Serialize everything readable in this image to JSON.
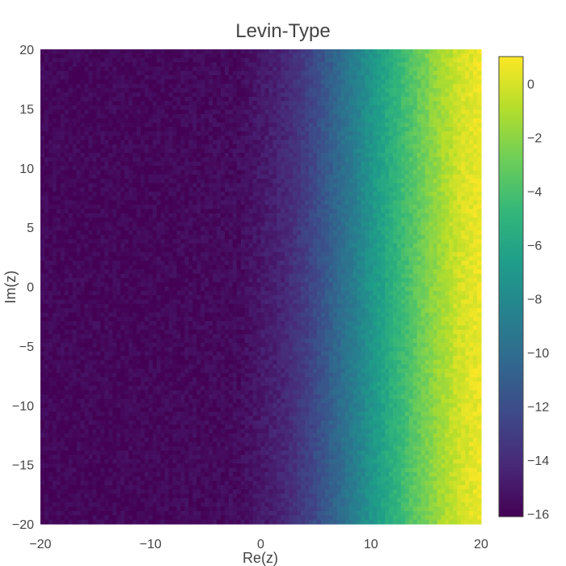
{
  "chart_data": {
    "type": "heatmap",
    "title": "Levin-Type",
    "xlabel": "Re(z)",
    "ylabel": "Im(z)",
    "xlim": [
      -20,
      20
    ],
    "ylim": [
      -20,
      20
    ],
    "x_ticks": [
      -20,
      -10,
      0,
      10,
      20
    ],
    "y_ticks": [
      -20,
      -15,
      -10,
      -5,
      0,
      5,
      10,
      15,
      20
    ],
    "colorbar": {
      "min": -16.1,
      "max": 1.0,
      "ticks": [
        0,
        -2,
        -4,
        -6,
        -8,
        -10,
        -12,
        -14,
        -16
      ],
      "colorscale": "viridis"
    },
    "value_profile": {
      "description_x": [
        -20,
        -10,
        -2,
        0,
        2,
        4,
        6,
        8,
        10,
        12,
        14,
        16,
        18,
        20
      ],
      "z": [
        -15.8,
        -15.8,
        -15.6,
        -15.0,
        -14.3,
        -13.0,
        -11.3,
        -9.3,
        -7.2,
        -5.3,
        -3.4,
        -1.7,
        -0.2,
        0.6
      ]
    },
    "colors": {
      "viridis": [
        "#440154",
        "#482878",
        "#3e4989",
        "#31688e",
        "#26828e",
        "#1f9e89",
        "#35b779",
        "#6ece58",
        "#b5de2b",
        "#fde725"
      ]
    }
  }
}
